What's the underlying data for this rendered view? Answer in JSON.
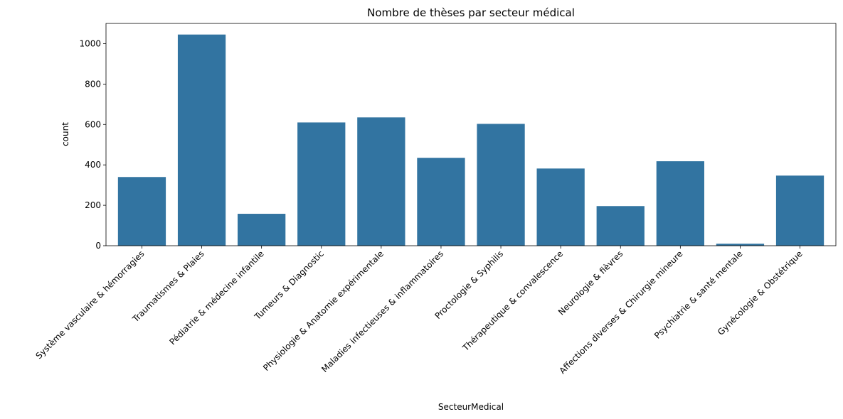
{
  "chart_data": {
    "type": "bar",
    "title": "Nombre de thèses par secteur médical",
    "xlabel": "SecteurMedical",
    "ylabel": "count",
    "ylim": [
      0,
      1100
    ],
    "yticks": [
      0,
      200,
      400,
      600,
      800,
      1000
    ],
    "categories": [
      "Système vasculaire & hémorragies",
      "Traumatismes & Plaies",
      "Pédiatrie & médecine infantile",
      "Tumeurs & Diagnostic",
      "Physiologie & Anatomie expérimentale",
      "Maladies infectieuses & inflammatoires",
      "Proctologie & Syphilis",
      "Thérapeutique & convalescence",
      "Neurologie & fièvres",
      "Affections diverses & Chirurgie mineure",
      "Psychiatrie & santé mentale",
      "Gynécologie & Obstétrique"
    ],
    "values": [
      340,
      1045,
      158,
      610,
      635,
      435,
      603,
      382,
      196,
      418,
      10,
      347
    ],
    "bar_color": "#3274a1",
    "grid": false,
    "legend": "none"
  }
}
